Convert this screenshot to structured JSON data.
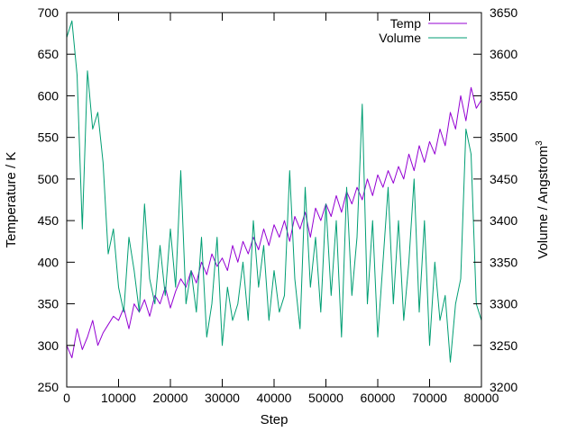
{
  "chart_data": {
    "type": "line",
    "xlabel": "Step",
    "ylabel": "Temperature / K",
    "y2label": "Volume / Angstrom",
    "y2label_sup": "3",
    "xlim": [
      0,
      80000
    ],
    "ylim": [
      250,
      700
    ],
    "y2lim": [
      3200,
      3650
    ],
    "x_ticks": [
      0,
      10000,
      20000,
      30000,
      40000,
      50000,
      60000,
      70000,
      80000
    ],
    "y_ticks": [
      250,
      300,
      350,
      400,
      450,
      500,
      550,
      600,
      650,
      700
    ],
    "y2_ticks": [
      3200,
      3250,
      3300,
      3350,
      3400,
      3450,
      3500,
      3550,
      3600,
      3650
    ],
    "grid": false,
    "legend_position": "top-right",
    "series": [
      {
        "name": "Temp",
        "axis": "left",
        "color": "#9400d3",
        "x": [
          0,
          1000,
          2000,
          3000,
          4000,
          5000,
          6000,
          7000,
          8000,
          9000,
          10000,
          11000,
          12000,
          13000,
          14000,
          15000,
          16000,
          17000,
          18000,
          19000,
          20000,
          21000,
          22000,
          23000,
          24000,
          25000,
          26000,
          27000,
          28000,
          29000,
          30000,
          31000,
          32000,
          33000,
          34000,
          35000,
          36000,
          37000,
          38000,
          39000,
          40000,
          41000,
          42000,
          43000,
          44000,
          45000,
          46000,
          47000,
          48000,
          49000,
          50000,
          51000,
          52000,
          53000,
          54000,
          55000,
          56000,
          57000,
          58000,
          59000,
          60000,
          61000,
          62000,
          63000,
          64000,
          65000,
          66000,
          67000,
          68000,
          69000,
          70000,
          71000,
          72000,
          73000,
          74000,
          75000,
          76000,
          77000,
          78000,
          79000,
          80000
        ],
        "values": [
          300,
          285,
          320,
          295,
          310,
          330,
          300,
          315,
          325,
          335,
          330,
          345,
          320,
          350,
          340,
          355,
          335,
          360,
          350,
          370,
          345,
          365,
          380,
          370,
          390,
          375,
          400,
          385,
          410,
          395,
          405,
          390,
          420,
          400,
          425,
          410,
          430,
          415,
          440,
          420,
          445,
          430,
          450,
          425,
          455,
          440,
          460,
          430,
          465,
          450,
          470,
          455,
          480,
          460,
          485,
          470,
          490,
          475,
          500,
          480,
          505,
          490,
          510,
          495,
          515,
          500,
          530,
          510,
          540,
          520,
          545,
          530,
          560,
          540,
          580,
          560,
          600,
          570,
          610,
          585,
          595
        ]
      },
      {
        "name": "Volume",
        "axis": "right",
        "color": "#009e73",
        "x": [
          0,
          1000,
          2000,
          3000,
          4000,
          5000,
          6000,
          7000,
          8000,
          9000,
          10000,
          11000,
          12000,
          13000,
          14000,
          15000,
          16000,
          17000,
          18000,
          19000,
          20000,
          21000,
          22000,
          23000,
          24000,
          25000,
          26000,
          27000,
          28000,
          29000,
          30000,
          31000,
          32000,
          33000,
          34000,
          35000,
          36000,
          37000,
          38000,
          39000,
          40000,
          41000,
          42000,
          43000,
          44000,
          45000,
          46000,
          47000,
          48000,
          49000,
          50000,
          51000,
          52000,
          53000,
          54000,
          55000,
          56000,
          57000,
          58000,
          59000,
          60000,
          61000,
          62000,
          63000,
          64000,
          65000,
          66000,
          67000,
          68000,
          69000,
          70000,
          71000,
          72000,
          73000,
          74000,
          75000,
          76000,
          77000,
          78000,
          79000,
          80000
        ],
        "values": [
          3620,
          3640,
          3575,
          3390,
          3580,
          3510,
          3530,
          3470,
          3360,
          3390,
          3320,
          3290,
          3380,
          3340,
          3290,
          3420,
          3330,
          3300,
          3370,
          3310,
          3390,
          3320,
          3460,
          3300,
          3340,
          3290,
          3380,
          3260,
          3300,
          3380,
          3250,
          3320,
          3280,
          3300,
          3350,
          3280,
          3400,
          3320,
          3370,
          3280,
          3340,
          3290,
          3310,
          3460,
          3330,
          3270,
          3440,
          3320,
          3380,
          3290,
          3420,
          3310,
          3400,
          3260,
          3440,
          3310,
          3380,
          3540,
          3300,
          3400,
          3260,
          3350,
          3440,
          3300,
          3400,
          3280,
          3350,
          3450,
          3290,
          3400,
          3250,
          3350,
          3280,
          3310,
          3230,
          3300,
          3330,
          3510,
          3480,
          3300,
          3280
        ]
      }
    ]
  }
}
